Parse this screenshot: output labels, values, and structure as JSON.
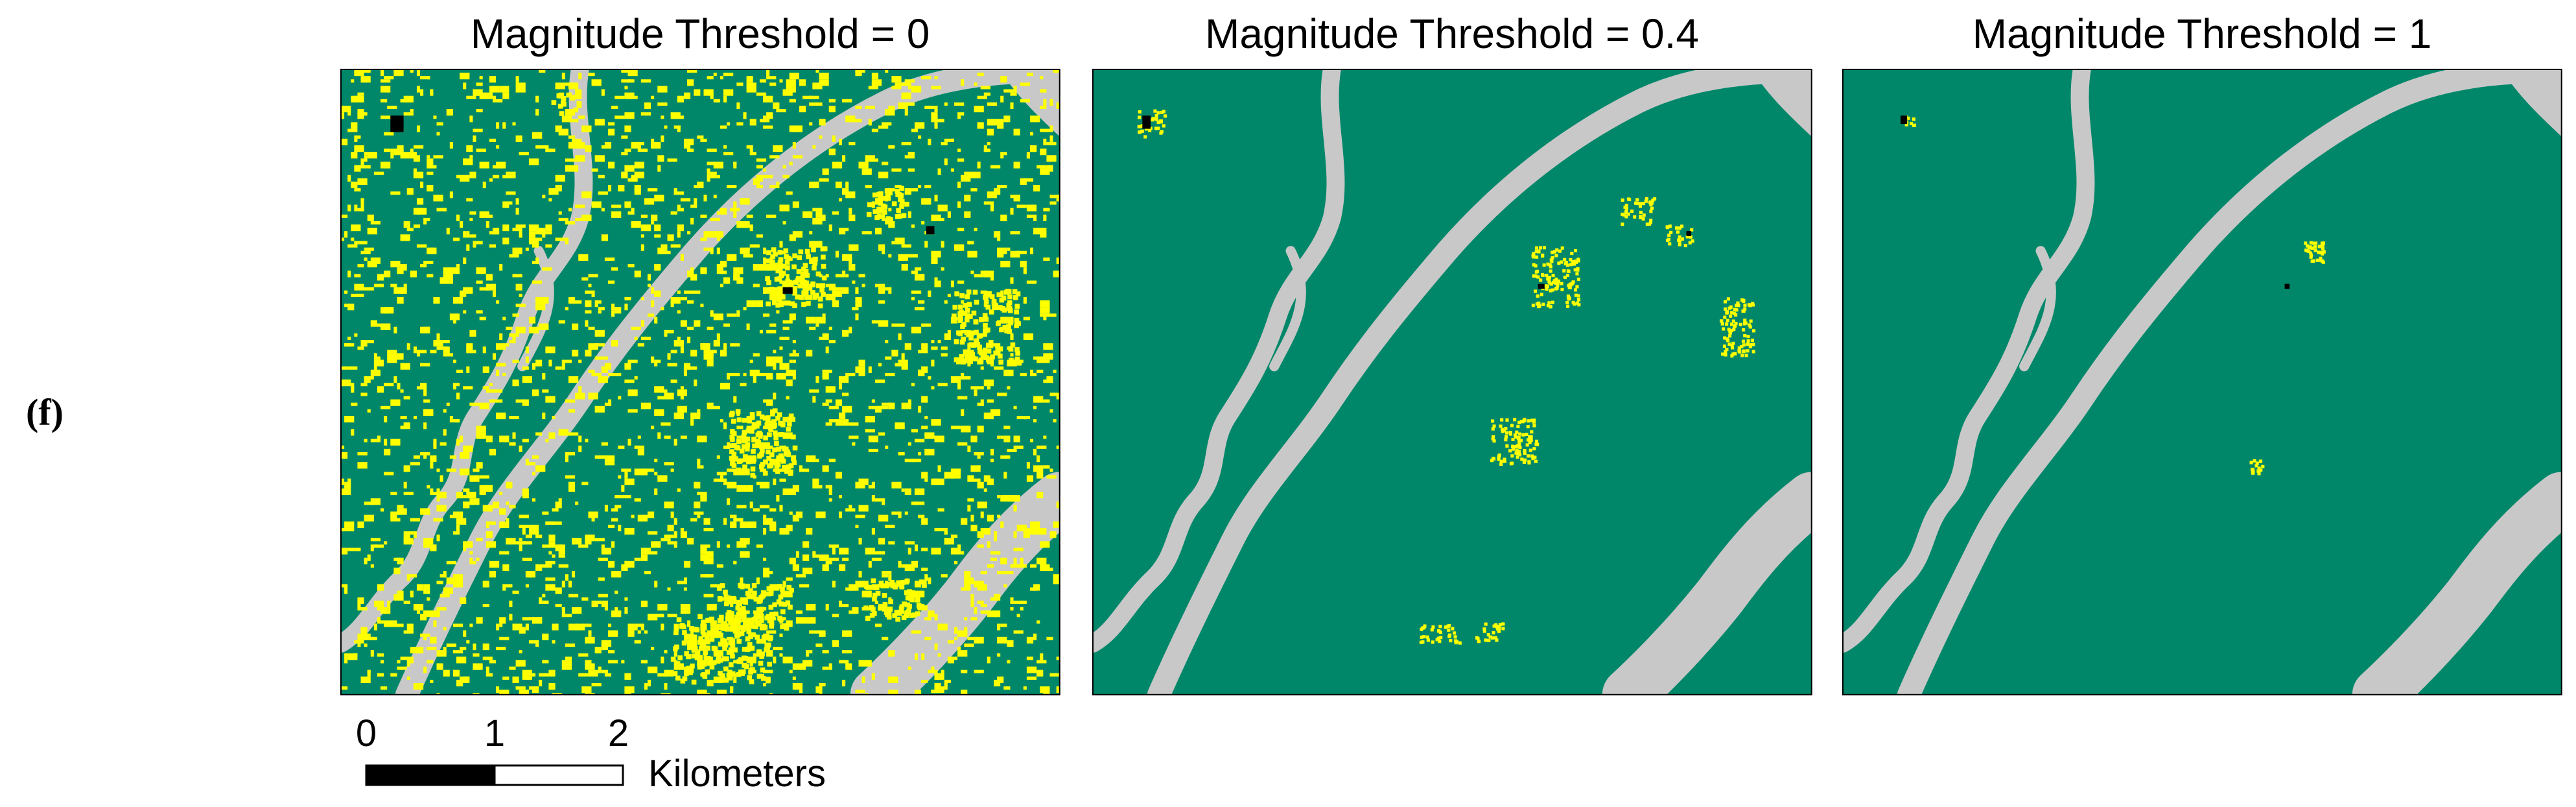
{
  "figure_label": "(f)",
  "panels": [
    {
      "title": "Magnitude Threshold = 0"
    },
    {
      "title": "Magnitude Threshold = 0.4"
    },
    {
      "title": "Magnitude Threshold = 1"
    }
  ],
  "scale_bar": {
    "ticks": [
      "0",
      "1",
      "2"
    ],
    "unit": "Kilometers"
  }
}
